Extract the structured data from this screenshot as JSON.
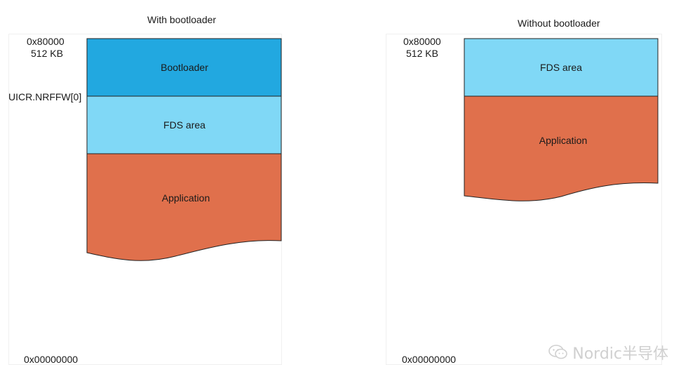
{
  "colors": {
    "bootloader": "#22a8e0",
    "fds": "#80d8f6",
    "application": "#e0704c",
    "outline": "#222222"
  },
  "left": {
    "title": "With bootloader",
    "top_address": "0x80000",
    "top_size": "512 KB",
    "uicr_label": "UICR.NRFFW[0]",
    "bottom_address": "0x00000000",
    "segments": {
      "bootloader": "Bootloader",
      "fds": "FDS area",
      "application": "Application"
    }
  },
  "right": {
    "title": "Without bootloader",
    "top_address": "0x80000",
    "top_size": "512 KB",
    "bottom_address": "0x00000000",
    "segments": {
      "fds": "FDS area",
      "application": "Application"
    }
  },
  "watermark": {
    "text": "Nordic半导体",
    "icon": "wechat-icon"
  }
}
